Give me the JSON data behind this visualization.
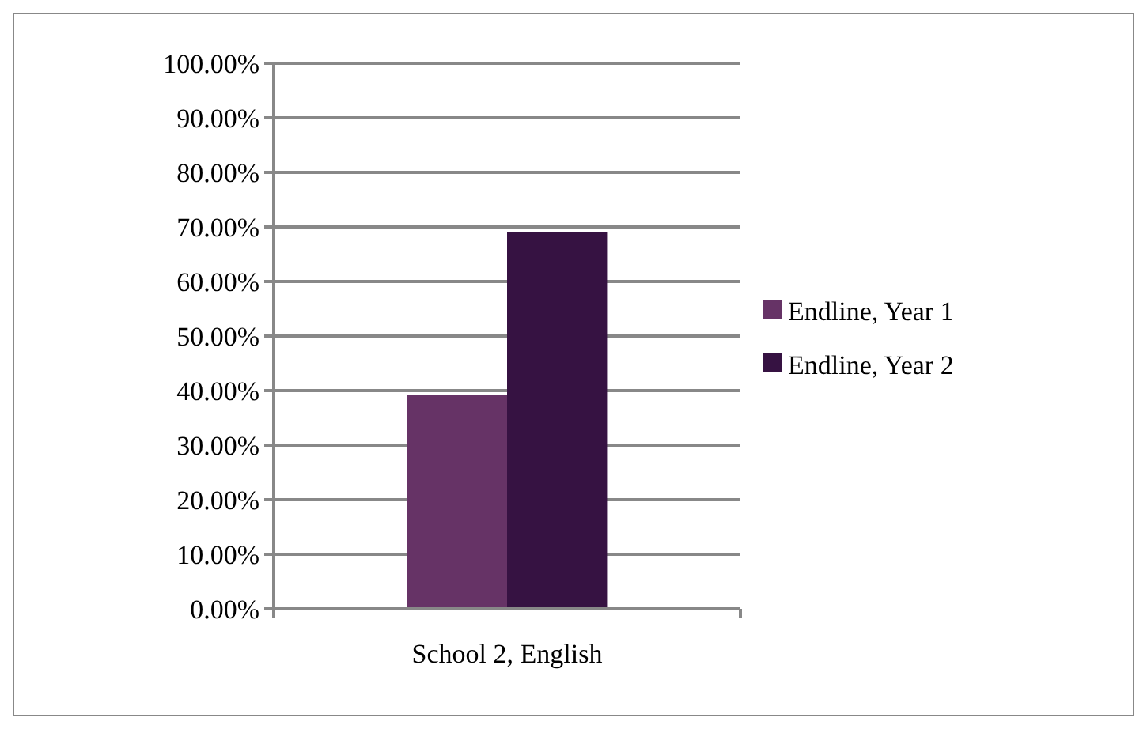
{
  "chart_data": {
    "type": "bar",
    "categories": [
      "School 2, English"
    ],
    "series": [
      {
        "name": "Endline, Year 1",
        "color": "#663366",
        "values": [
          39.2
        ]
      },
      {
        "name": "Endline, Year 2",
        "color": "#361242",
        "values": [
          69.1
        ]
      }
    ],
    "ylim": [
      0,
      100
    ],
    "yticks": [
      {
        "value": 0,
        "label": "0.00%"
      },
      {
        "value": 10,
        "label": "10.00%"
      },
      {
        "value": 20,
        "label": "20.00%"
      },
      {
        "value": 30,
        "label": "30.00%"
      },
      {
        "value": 40,
        "label": "40.00%"
      },
      {
        "value": 50,
        "label": "50.00%"
      },
      {
        "value": 60,
        "label": "60.00%"
      },
      {
        "value": 70,
        "label": "70.00%"
      },
      {
        "value": 80,
        "label": "80.00%"
      },
      {
        "value": 90,
        "label": "90.00%"
      },
      {
        "value": 100,
        "label": "100.00%"
      }
    ],
    "grid": "y",
    "legend": "right"
  }
}
